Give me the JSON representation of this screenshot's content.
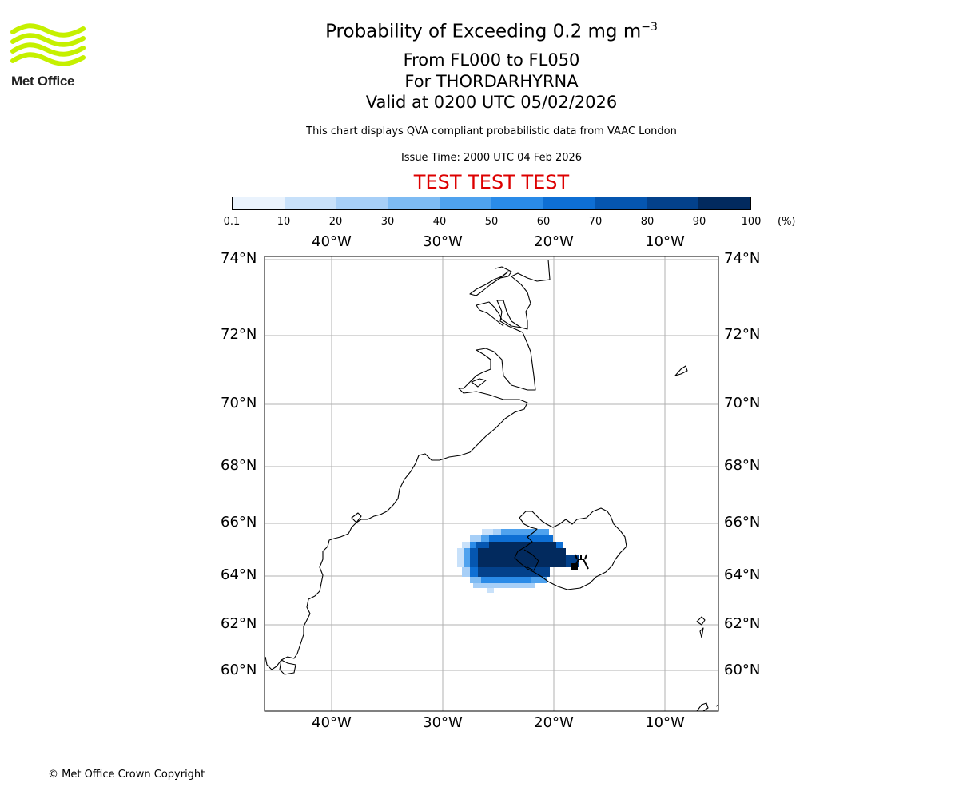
{
  "logo": {
    "text": "Met Office",
    "color": "#c5f000"
  },
  "title": {
    "line1_prefix": "Probability of Exceeding 0.2 mg m",
    "line1_sup": "−3",
    "line2": "From FL000 to FL050",
    "line3": "For THORDARHYRNA",
    "line4": "Valid at 0200 UTC 05/02/2026"
  },
  "description": "This chart displays QVA compliant probabilistic data from VAAC London",
  "issue_time": "Issue Time: 2000 UTC 04 Feb 2026",
  "test_banner": {
    "text": "TEST TEST TEST",
    "color": "#dd0000"
  },
  "colorbar": {
    "ticks": [
      "0.1",
      "10",
      "20",
      "30",
      "40",
      "50",
      "60",
      "70",
      "80",
      "90",
      "100"
    ],
    "unit": "(%)",
    "colors": [
      "#eaf3fd",
      "#c8e1fa",
      "#a7cff7",
      "#7ebbf3",
      "#4fa2ee",
      "#2a8be8",
      "#0e6fd4",
      "#0556b0",
      "#03418b",
      "#022a5e"
    ]
  },
  "map": {
    "lat_labels": [
      "74°N",
      "72°N",
      "70°N",
      "68°N",
      "66°N",
      "64°N",
      "62°N",
      "60°N"
    ],
    "lon_labels": [
      "40°W",
      "30°W",
      "20°W",
      "10°W"
    ],
    "volcano_marker": "volcano-symbol"
  },
  "copyright": "© Met Office Crown Copyright"
}
